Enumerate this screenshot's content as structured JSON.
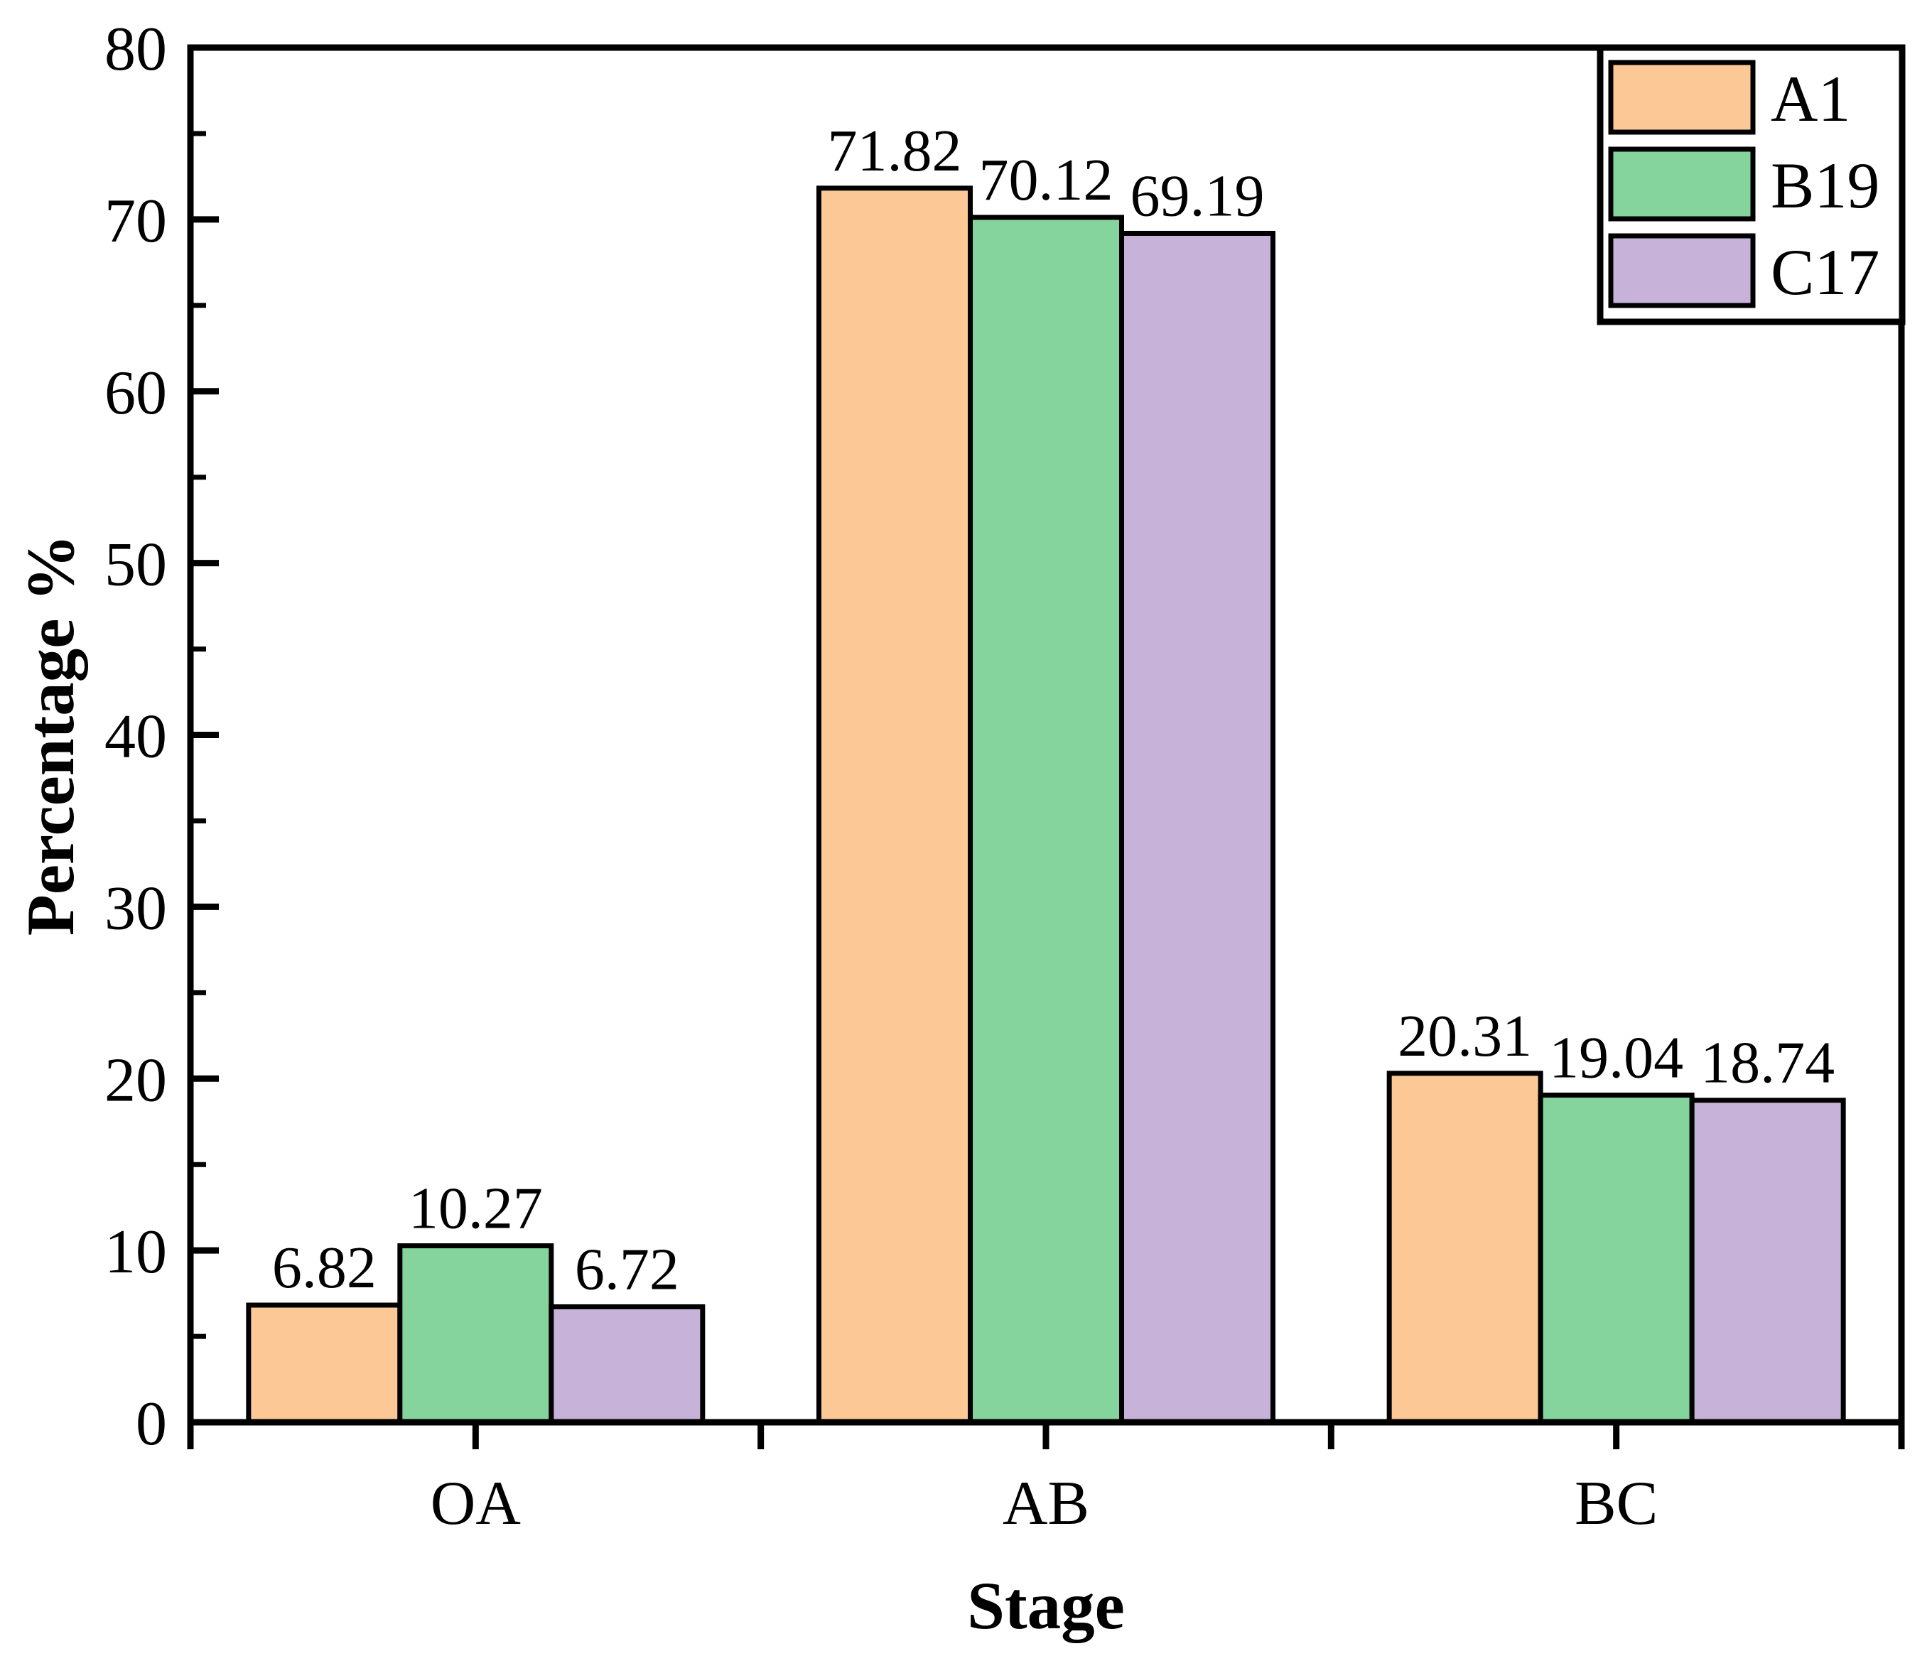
{
  "figure": {
    "kind": "grouped-bar-chart"
  },
  "chart_data": {
    "type": "bar",
    "title": "",
    "xlabel": "Stage",
    "ylabel": "Percentage %",
    "categories": [
      "OA",
      "AB",
      "BC"
    ],
    "series": [
      {
        "name": "A1",
        "color": "#FCC996",
        "values": [
          6.82,
          71.82,
          20.31
        ]
      },
      {
        "name": "B19",
        "color": "#85D49D",
        "values": [
          10.27,
          70.12,
          19.04
        ]
      },
      {
        "name": "C17",
        "color": "#C7B3D9",
        "values": [
          6.72,
          69.19,
          18.74
        ]
      }
    ],
    "bar_value_labels": [
      [
        "6.82",
        "71.82",
        "20.31"
      ],
      [
        "10.27",
        "70.12",
        "19.04"
      ],
      [
        "6.72",
        "69.19",
        "18.74"
      ]
    ],
    "ylim": [
      0,
      80
    ],
    "yticks": [
      0,
      10,
      20,
      30,
      40,
      50,
      60,
      70,
      80
    ],
    "ytick_minor_step": 5,
    "grid": false,
    "legend_position": "top-right",
    "legend_entries": [
      "A1",
      "B19",
      "C17"
    ],
    "bar_edge_color": "#000000",
    "axis_color": "#000000",
    "background_color": "#FFFFFF"
  }
}
